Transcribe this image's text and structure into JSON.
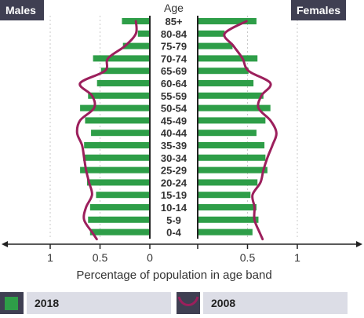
{
  "chart_data": {
    "type": "bar",
    "orientation": "horizontal-population-pyramid",
    "title": "",
    "xlabel": "Percentage of population in age band",
    "ylabel": "Age",
    "xlim": [
      0,
      1
    ],
    "x_ticks": [
      "1",
      "0.5",
      "0",
      "0.5",
      "1"
    ],
    "grid": true,
    "left_panel_label": "Males",
    "right_panel_label": "Females",
    "categories": [
      "85+",
      "80-84",
      "75-79",
      "70-74",
      "65-69",
      "60-64",
      "55-59",
      "50-54",
      "45-49",
      "40-44",
      "35-39",
      "30-34",
      "25-29",
      "20-24",
      "15-19",
      "10-14",
      "5-9",
      "0-4"
    ],
    "series": [
      {
        "name": "2018",
        "style": "bars",
        "color": "#2e9e48",
        "males": [
          0.28,
          0.12,
          0.27,
          0.57,
          0.49,
          0.53,
          0.62,
          0.7,
          0.65,
          0.59,
          0.66,
          0.67,
          0.7,
          0.63,
          0.54,
          0.6,
          0.62,
          0.6
        ],
        "females": [
          0.59,
          0.27,
          0.35,
          0.6,
          0.51,
          0.56,
          0.66,
          0.73,
          0.68,
          0.59,
          0.67,
          0.68,
          0.7,
          0.6,
          0.53,
          0.59,
          0.61,
          0.55
        ]
      },
      {
        "name": "2008",
        "style": "line",
        "color": "#9c1f5c",
        "males": [
          0.14,
          0.14,
          0.25,
          0.42,
          0.45,
          0.7,
          0.58,
          0.56,
          0.7,
          0.73,
          0.68,
          0.66,
          0.64,
          0.61,
          0.58,
          0.64,
          0.66,
          0.58
        ],
        "females": [
          0.49,
          0.27,
          0.36,
          0.45,
          0.51,
          0.73,
          0.64,
          0.61,
          0.73,
          0.79,
          0.75,
          0.7,
          0.66,
          0.63,
          0.55,
          0.57,
          0.57,
          0.62
        ]
      }
    ],
    "legend": {
      "placement": "bottom",
      "items": [
        {
          "label": "2018",
          "symbol": "green-square"
        },
        {
          "label": "2008",
          "symbol": "magenta-line"
        }
      ]
    }
  }
}
